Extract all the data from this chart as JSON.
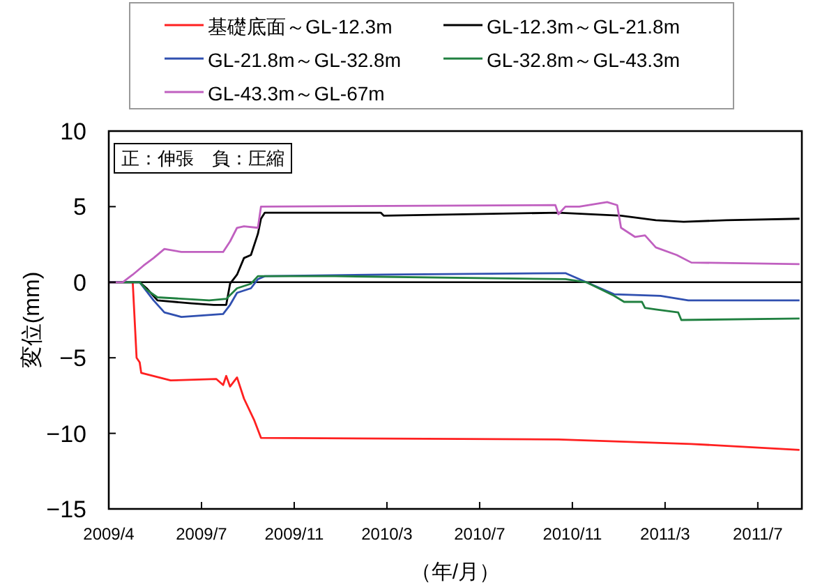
{
  "chart_data": {
    "type": "line",
    "xlabel": "（年/月）",
    "ylabel": "変位(mm)",
    "annotations": [
      "正：伸張　負：圧縮"
    ],
    "xlim": [
      "2009-04-01",
      "2011-09-15"
    ],
    "ylim": [
      -15,
      10
    ],
    "yticks": [
      -15,
      -10,
      -5,
      0,
      5,
      10
    ],
    "xticks": [
      {
        "value": "2009-04-01",
        "label": "2009/4"
      },
      {
        "value": "2009-07-30",
        "label": "2009/7"
      },
      {
        "value": "2009-11-27",
        "label": "2009/11"
      },
      {
        "value": "2010-03-27",
        "label": "2010/3"
      },
      {
        "value": "2010-07-25",
        "label": "2010/7"
      },
      {
        "value": "2010-11-22",
        "label": "2010/11"
      },
      {
        "value": "2011-03-22",
        "label": "2011/3"
      },
      {
        "value": "2011-07-20",
        "label": "2011/7"
      }
    ],
    "grid": false,
    "legend": "top",
    "marker": "none",
    "line_style": "solid",
    "ref_lines": [
      {
        "axis": "y",
        "value": 0,
        "color": "#000000"
      }
    ],
    "series": [
      {
        "name": "基礎底面～GL-12.3m",
        "color": "#ff2020",
        "x": [
          "2009-04-01",
          "2009-05-02",
          "2009-05-07",
          "2009-05-11",
          "2009-05-13",
          "2009-06-20",
          "2009-08-18",
          "2009-08-27",
          "2009-08-31",
          "2009-09-05",
          "2009-09-14",
          "2009-09-23",
          "2009-10-06",
          "2009-10-15",
          "2010-11-04",
          "2011-04-25",
          "2011-09-12"
        ],
        "values": [
          0,
          0,
          -5.0,
          -5.3,
          -6.0,
          -6.5,
          -6.4,
          -6.8,
          -6.2,
          -6.9,
          -6.3,
          -7.7,
          -9.1,
          -10.3,
          -10.4,
          -10.7,
          -11.1
        ]
      },
      {
        "name": "GL-12.3m～GL-21.8m",
        "color": "#000000",
        "x": [
          "2009-04-01",
          "2009-05-11",
          "2009-05-20",
          "2009-06-03",
          "2009-07-17",
          "2009-08-15",
          "2009-08-31",
          "2009-09-05",
          "2009-09-14",
          "2009-09-23",
          "2009-10-02",
          "2009-10-11",
          "2009-10-15",
          "2009-10-20",
          "2010-03-19",
          "2010-03-23",
          "2010-11-04",
          "2011-01-24",
          "2011-03-10",
          "2011-04-15",
          "2011-06-09",
          "2011-09-12"
        ],
        "values": [
          0,
          0,
          -0.4,
          -1.2,
          -1.4,
          -1.5,
          -1.5,
          -0.1,
          0.5,
          1.6,
          1.8,
          3.2,
          4.2,
          4.6,
          4.6,
          4.4,
          4.6,
          4.4,
          4.1,
          4.0,
          4.1,
          4.2
        ]
      },
      {
        "name": "GL-21.8m～GL-32.8m",
        "color": "#3050b0",
        "x": [
          "2009-04-01",
          "2009-05-11",
          "2009-05-29",
          "2009-06-12",
          "2009-07-04",
          "2009-08-27",
          "2009-09-05",
          "2009-09-14",
          "2009-10-02",
          "2009-10-11",
          "2009-10-20",
          "2010-03-23",
          "2010-11-13",
          "2010-12-10",
          "2011-01-15",
          "2011-03-16",
          "2011-04-21",
          "2011-09-12"
        ],
        "values": [
          0,
          0,
          -1.2,
          -2.0,
          -2.3,
          -2.1,
          -1.5,
          -0.7,
          -0.4,
          0.2,
          0.4,
          0.5,
          0.6,
          0,
          -0.8,
          -0.9,
          -1.2,
          -1.2
        ]
      },
      {
        "name": "GL-32.8m～GL-43.3m",
        "color": "#208040",
        "x": [
          "2009-04-01",
          "2009-05-11",
          "2009-05-20",
          "2009-06-03",
          "2009-08-09",
          "2009-08-31",
          "2009-09-14",
          "2009-10-02",
          "2009-10-11",
          "2010-01-19",
          "2010-11-13",
          "2010-12-10",
          "2011-01-15",
          "2011-01-28",
          "2011-02-20",
          "2011-02-24",
          "2011-03-10",
          "2011-04-08",
          "2011-04-12",
          "2011-09-12"
        ],
        "values": [
          0,
          0,
          -0.5,
          -1.0,
          -1.2,
          -1.1,
          -0.4,
          -0.1,
          0.4,
          0.4,
          0.2,
          0,
          -0.9,
          -1.3,
          -1.3,
          -1.7,
          -1.8,
          -2.0,
          -2.5,
          -2.4
        ]
      },
      {
        "name": "GL-43.3m～GL-67m",
        "color": "#c060c0",
        "x": [
          "2009-04-01",
          "2009-04-19",
          "2009-05-02",
          "2009-05-16",
          "2009-05-29",
          "2009-06-12",
          "2009-07-04",
          "2009-08-27",
          "2009-09-05",
          "2009-09-14",
          "2009-09-23",
          "2009-10-11",
          "2009-10-15",
          "2010-10-31",
          "2010-11-04",
          "2010-11-13",
          "2010-12-01",
          "2011-01-06",
          "2011-01-19",
          "2011-01-24",
          "2011-02-11",
          "2011-02-24",
          "2011-03-10",
          "2011-04-06",
          "2011-04-25",
          "2011-09-12"
        ],
        "values": [
          0,
          0,
          0.5,
          1.1,
          1.6,
          2.2,
          2.0,
          2.0,
          2.7,
          3.6,
          3.7,
          3.6,
          5.0,
          5.1,
          4.5,
          5.0,
          5.0,
          5.3,
          5.1,
          3.6,
          3.0,
          3.1,
          2.3,
          1.8,
          1.3,
          1.2
        ]
      }
    ]
  }
}
